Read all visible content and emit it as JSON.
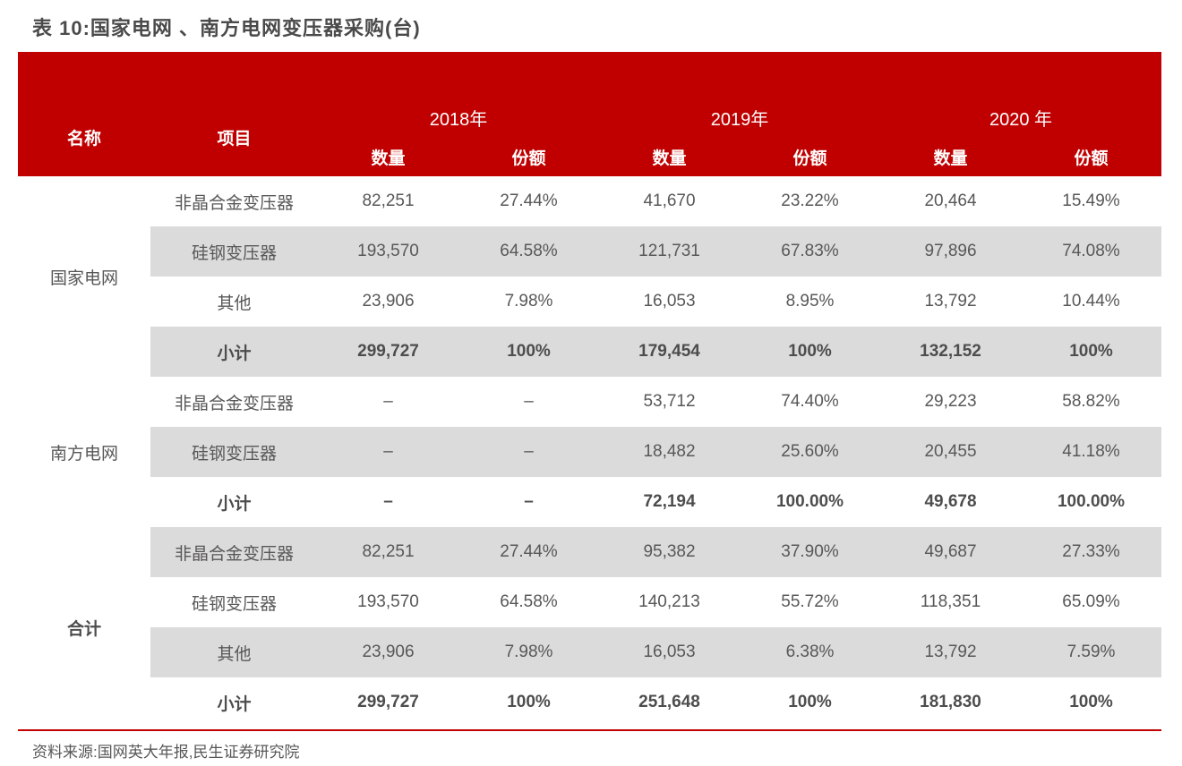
{
  "title": "表 10:国家电网 、南方电网变压器采购(台)",
  "columns": {
    "name": "名称",
    "item": "项目",
    "qty": "数量",
    "share": "份额",
    "years": [
      "2018年",
      "2019年",
      "2020 年"
    ]
  },
  "groups": [
    {
      "name": "国家电网",
      "bold": false,
      "rows": [
        {
          "item": "非晶合金变压器",
          "bold": false,
          "values": [
            "82,251",
            "27.44%",
            "41,670",
            "23.22%",
            "20,464",
            "15.49%"
          ]
        },
        {
          "item": "硅钢变压器",
          "bold": false,
          "values": [
            "193,570",
            "64.58%",
            "121,731",
            "67.83%",
            "97,896",
            "74.08%"
          ]
        },
        {
          "item": "其他",
          "bold": false,
          "values": [
            "23,906",
            "7.98%",
            "16,053",
            "8.95%",
            "13,792",
            "10.44%"
          ]
        },
        {
          "item": "小计",
          "bold": true,
          "values": [
            "299,727",
            "100%",
            "179,454",
            "100%",
            "132,152",
            "100%"
          ]
        }
      ]
    },
    {
      "name": "南方电网",
      "bold": false,
      "rows": [
        {
          "item": "非晶合金变压器",
          "bold": false,
          "values": [
            "–",
            "–",
            "53,712",
            "74.40%",
            "29,223",
            "58.82%"
          ]
        },
        {
          "item": "硅钢变压器",
          "bold": false,
          "values": [
            "–",
            "–",
            "18,482",
            "25.60%",
            "20,455",
            "41.18%"
          ]
        },
        {
          "item": "小计",
          "bold": true,
          "values": [
            "–",
            "–",
            "72,194",
            "100.00%",
            "49,678",
            "100.00%"
          ]
        }
      ]
    },
    {
      "name": "合计",
      "bold": true,
      "rows": [
        {
          "item": "非晶合金变压器",
          "bold": false,
          "values": [
            "82,251",
            "27.44%",
            "95,382",
            "37.90%",
            "49,687",
            "27.33%"
          ]
        },
        {
          "item": "硅钢变压器",
          "bold": false,
          "values": [
            "193,570",
            "64.58%",
            "140,213",
            "55.72%",
            "118,351",
            "65.09%"
          ]
        },
        {
          "item": "其他",
          "bold": false,
          "values": [
            "23,906",
            "7.98%",
            "16,053",
            "6.38%",
            "13,792",
            "7.59%"
          ]
        },
        {
          "item": "小计",
          "bold": true,
          "values": [
            "299,727",
            "100%",
            "251,648",
            "100%",
            "181,830",
            "100%"
          ]
        }
      ]
    }
  ],
  "source": "资料来源:国网英大年报,民生证券研究院",
  "colors": {
    "accent": "#C00000",
    "stripe": "#DBDBDB",
    "text": "#595757",
    "title": "#4A4A4A",
    "header-text": "#FFFFFF"
  }
}
